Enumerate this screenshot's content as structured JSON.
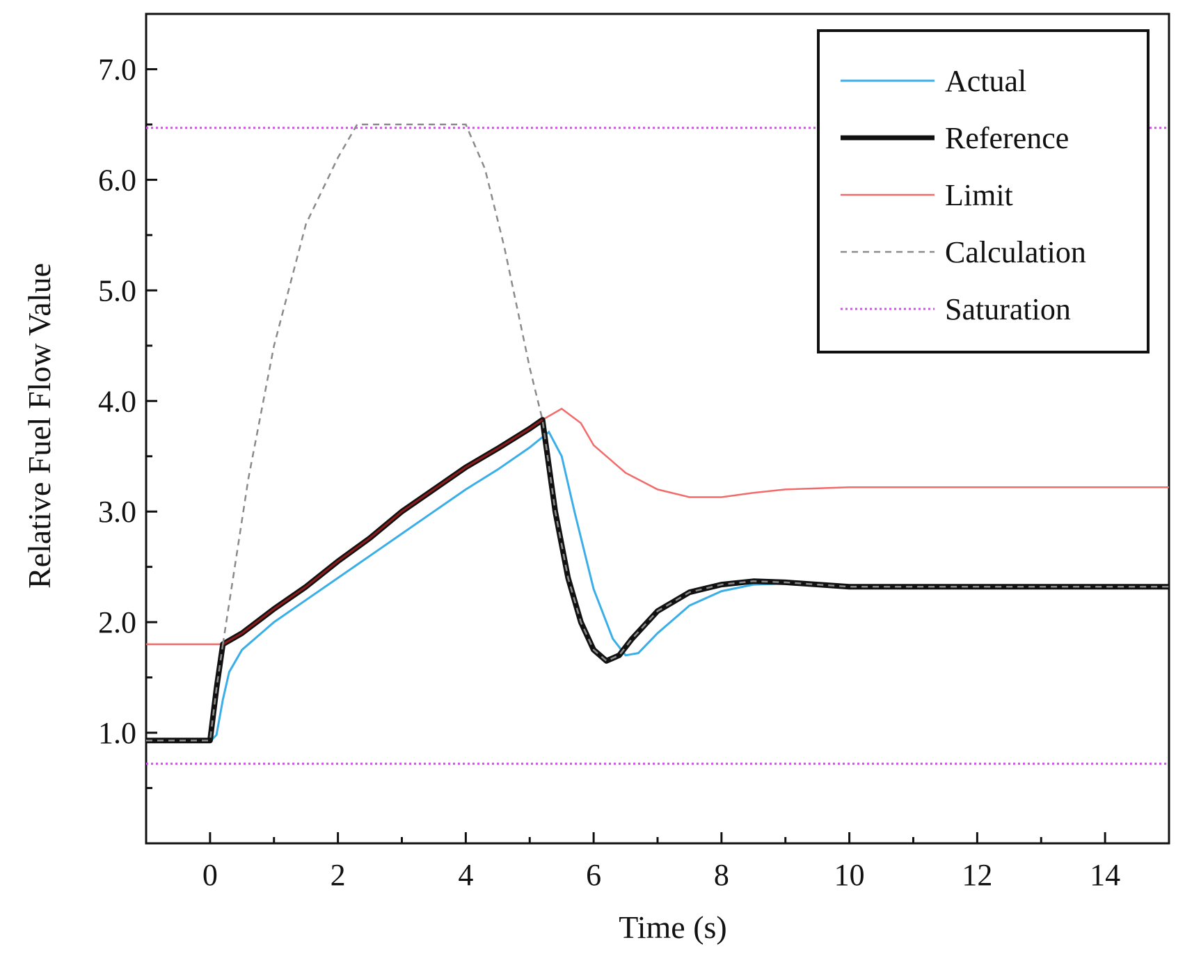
{
  "chart_data": {
    "type": "line",
    "title": "",
    "xlabel": "Time (s)",
    "ylabel": "Relative Fuel Flow Value",
    "xlim": [
      -1,
      15
    ],
    "ylim": [
      0,
      7.5
    ],
    "x_ticks": [
      0,
      2,
      4,
      6,
      8,
      10,
      12,
      14
    ],
    "x_tick_labels": [
      "0",
      "2",
      "4",
      "6",
      "8",
      "10",
      "12",
      "14"
    ],
    "y_ticks": [
      1,
      2,
      3,
      4,
      5,
      6,
      7
    ],
    "y_tick_labels": [
      "1.0",
      "2.0",
      "3.0",
      "4.0",
      "5.0",
      "6.0",
      "7.0"
    ],
    "grid": false,
    "legend_position": "top-right",
    "colors": {
      "actual": "#3aaee8",
      "reference": "#111111",
      "limit": "#f26b6b",
      "calculation": "#8a8a8a",
      "saturation": "#c957e0",
      "overlap": "#8b1a1a"
    },
    "series": [
      {
        "name": "Actual",
        "style": "solid",
        "points": [
          [
            -1,
            0.92
          ],
          [
            0.0,
            0.92
          ],
          [
            0.1,
            0.98
          ],
          [
            0.2,
            1.3
          ],
          [
            0.3,
            1.55
          ],
          [
            0.5,
            1.75
          ],
          [
            0.8,
            1.9
          ],
          [
            1.0,
            2.0
          ],
          [
            1.5,
            2.2
          ],
          [
            2.0,
            2.4
          ],
          [
            2.5,
            2.6
          ],
          [
            3.0,
            2.8
          ],
          [
            3.5,
            3.0
          ],
          [
            4.0,
            3.2
          ],
          [
            4.5,
            3.38
          ],
          [
            5.0,
            3.58
          ],
          [
            5.3,
            3.72
          ],
          [
            5.5,
            3.5
          ],
          [
            5.7,
            3.0
          ],
          [
            6.0,
            2.3
          ],
          [
            6.3,
            1.85
          ],
          [
            6.5,
            1.7
          ],
          [
            6.7,
            1.72
          ],
          [
            7.0,
            1.9
          ],
          [
            7.5,
            2.15
          ],
          [
            8.0,
            2.28
          ],
          [
            8.5,
            2.34
          ],
          [
            9.0,
            2.35
          ],
          [
            10.0,
            2.32
          ],
          [
            15.0,
            2.32
          ]
        ]
      },
      {
        "name": "Reference",
        "style": "solid-thick",
        "points": [
          [
            -1,
            0.93
          ],
          [
            0.0,
            0.93
          ],
          [
            0.1,
            1.4
          ],
          [
            0.2,
            1.8
          ],
          [
            0.5,
            1.9
          ],
          [
            1.0,
            2.12
          ],
          [
            1.5,
            2.32
          ],
          [
            2.0,
            2.55
          ],
          [
            2.5,
            2.76
          ],
          [
            3.0,
            3.0
          ],
          [
            3.5,
            3.2
          ],
          [
            4.0,
            3.4
          ],
          [
            4.5,
            3.57
          ],
          [
            5.0,
            3.75
          ],
          [
            5.2,
            3.83
          ],
          [
            5.4,
            3.0
          ],
          [
            5.6,
            2.4
          ],
          [
            5.8,
            2.0
          ],
          [
            6.0,
            1.75
          ],
          [
            6.2,
            1.65
          ],
          [
            6.4,
            1.7
          ],
          [
            6.6,
            1.85
          ],
          [
            7.0,
            2.1
          ],
          [
            7.5,
            2.27
          ],
          [
            8.0,
            2.34
          ],
          [
            8.5,
            2.37
          ],
          [
            9.0,
            2.36
          ],
          [
            10.0,
            2.32
          ],
          [
            15.0,
            2.32
          ]
        ]
      },
      {
        "name": "Limit",
        "style": "solid",
        "points": [
          [
            -1,
            1.8
          ],
          [
            0.2,
            1.8
          ],
          [
            0.5,
            1.9
          ],
          [
            1.0,
            2.12
          ],
          [
            1.5,
            2.32
          ],
          [
            2.0,
            2.55
          ],
          [
            2.5,
            2.76
          ],
          [
            3.0,
            3.0
          ],
          [
            3.5,
            3.2
          ],
          [
            4.0,
            3.4
          ],
          [
            4.5,
            3.57
          ],
          [
            5.0,
            3.75
          ],
          [
            5.2,
            3.83
          ],
          [
            5.5,
            3.93
          ],
          [
            5.8,
            3.8
          ],
          [
            6.0,
            3.6
          ],
          [
            6.5,
            3.35
          ],
          [
            7.0,
            3.2
          ],
          [
            7.5,
            3.13
          ],
          [
            8.0,
            3.13
          ],
          [
            8.5,
            3.17
          ],
          [
            9.0,
            3.2
          ],
          [
            10.0,
            3.22
          ],
          [
            15.0,
            3.22
          ]
        ]
      },
      {
        "name": "Calculation",
        "style": "dashed",
        "points": [
          [
            0.2,
            1.8
          ],
          [
            0.6,
            3.3
          ],
          [
            1.0,
            4.5
          ],
          [
            1.5,
            5.6
          ],
          [
            2.0,
            6.2
          ],
          [
            2.3,
            6.5
          ],
          [
            4.0,
            6.5
          ],
          [
            4.3,
            6.1
          ],
          [
            4.6,
            5.4
          ],
          [
            5.0,
            4.3
          ],
          [
            5.2,
            3.83
          ],
          [
            5.4,
            3.0
          ],
          [
            5.6,
            2.4
          ],
          [
            5.8,
            2.0
          ],
          [
            6.0,
            1.75
          ],
          [
            6.2,
            1.65
          ],
          [
            6.4,
            1.7
          ],
          [
            6.6,
            1.85
          ],
          [
            7.0,
            2.1
          ],
          [
            7.5,
            2.27
          ],
          [
            8.0,
            2.34
          ],
          [
            8.5,
            2.37
          ],
          [
            9.0,
            2.36
          ],
          [
            10.0,
            2.32
          ],
          [
            15.0,
            2.32
          ]
        ]
      },
      {
        "name": "Saturation",
        "style": "dotted",
        "values": [
          6.47,
          0.72
        ]
      }
    ]
  }
}
